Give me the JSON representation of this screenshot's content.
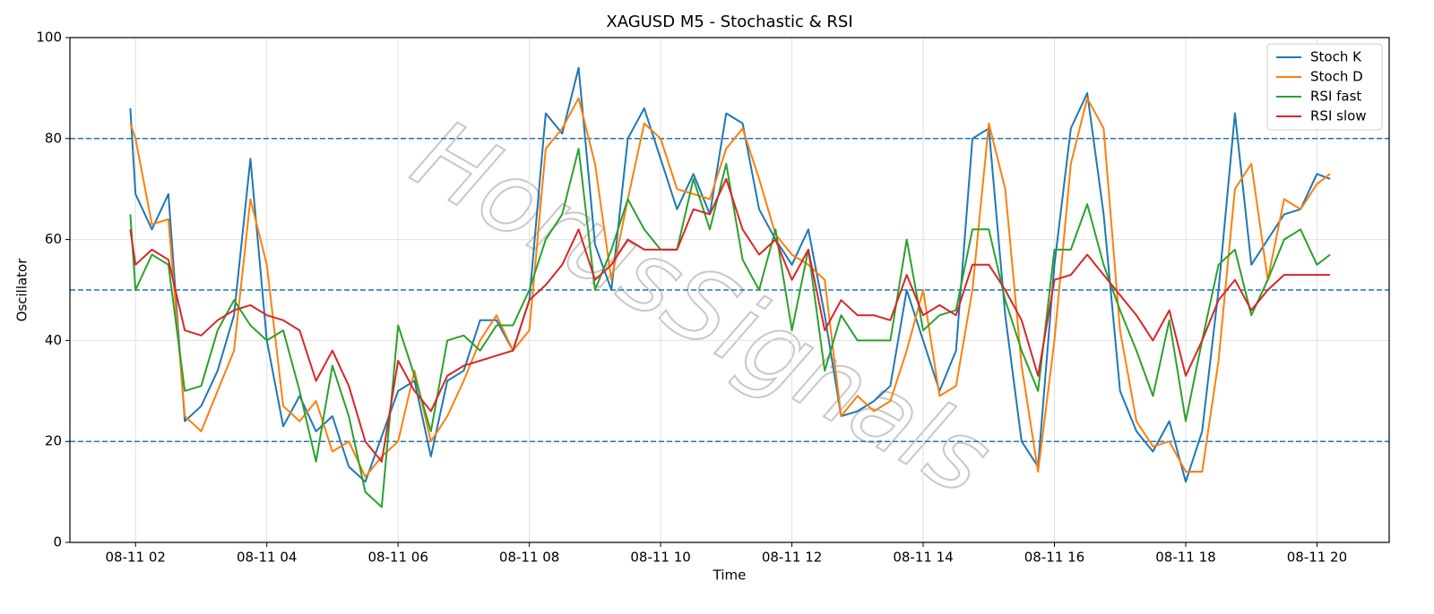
{
  "chart_data": {
    "type": "line",
    "title": "XAGUSD M5 - Stochastic & RSI",
    "xlabel": "Time",
    "ylabel": "Oscillator",
    "watermark": "HorusSignals",
    "x": [
      1.92,
      2,
      2.25,
      2.5,
      2.75,
      3,
      3.25,
      3.5,
      3.75,
      4,
      4.25,
      4.5,
      4.75,
      5,
      5.25,
      5.5,
      5.75,
      6,
      6.25,
      6.5,
      6.75,
      7,
      7.25,
      7.5,
      7.75,
      8,
      8.25,
      8.5,
      8.75,
      9,
      9.25,
      9.5,
      9.75,
      10,
      10.25,
      10.5,
      10.75,
      11,
      11.25,
      11.5,
      11.75,
      12,
      12.25,
      12.5,
      12.75,
      13,
      13.25,
      13.5,
      13.75,
      14,
      14.25,
      14.5,
      14.75,
      15,
      15.25,
      15.5,
      15.75,
      16,
      16.25,
      16.5,
      16.75,
      17,
      17.25,
      17.5,
      17.75,
      18,
      18.25,
      18.5,
      18.75,
      19,
      19.25,
      19.5,
      19.75,
      20,
      20.2
    ],
    "series": [
      {
        "name": "Stoch K",
        "color": "#1f77b4",
        "values": [
          86,
          69,
          62,
          69,
          24,
          27,
          34,
          45,
          76,
          40,
          23,
          29,
          22,
          25,
          15,
          12,
          21,
          30,
          32,
          17,
          32,
          34,
          44,
          44,
          38,
          48,
          85,
          81,
          94,
          59,
          50,
          80,
          86,
          76,
          66,
          73,
          65,
          85,
          83,
          66,
          60,
          55,
          62,
          45,
          25,
          26,
          28,
          31,
          50,
          40,
          30,
          38,
          80,
          82,
          45,
          20,
          15,
          55,
          82,
          89,
          65,
          30,
          22,
          18,
          24,
          12,
          22,
          50,
          85,
          55,
          60,
          65,
          66,
          73,
          72
        ]
      },
      {
        "name": "Stoch D",
        "color": "#ff7f0e",
        "values": [
          83,
          80,
          63,
          64,
          25,
          22,
          30,
          38,
          68,
          55,
          27,
          24,
          28,
          18,
          20,
          13,
          17,
          20,
          34,
          20,
          25,
          32,
          40,
          45,
          38,
          42,
          78,
          82,
          88,
          75,
          52,
          68,
          83,
          80,
          70,
          69,
          68,
          78,
          82,
          72,
          61,
          57,
          55,
          52,
          25,
          29,
          26,
          28,
          38,
          50,
          29,
          31,
          50,
          83,
          70,
          35,
          14,
          40,
          75,
          88,
          82,
          42,
          24,
          19,
          20,
          14,
          14,
          36,
          70,
          75,
          52,
          68,
          66,
          71,
          73
        ]
      },
      {
        "name": "RSI fast",
        "color": "#2ca02c",
        "values": [
          65,
          50,
          57,
          55,
          30,
          31,
          42,
          48,
          43,
          40,
          42,
          30,
          16,
          35,
          25,
          10,
          7,
          43,
          33,
          22,
          40,
          41,
          38,
          43,
          43,
          50,
          60,
          65,
          78,
          50,
          58,
          68,
          62,
          58,
          58,
          72,
          62,
          75,
          56,
          50,
          62,
          42,
          58,
          34,
          45,
          40,
          40,
          40,
          60,
          42,
          45,
          46,
          62,
          62,
          48,
          38,
          30,
          58,
          58,
          67,
          55,
          46,
          38,
          29,
          44,
          24,
          40,
          55,
          58,
          45,
          52,
          60,
          62,
          55,
          57
        ]
      },
      {
        "name": "RSI slow",
        "color": "#d62728",
        "values": [
          62,
          55,
          58,
          56,
          42,
          41,
          44,
          46,
          47,
          45,
          44,
          42,
          32,
          38,
          31,
          20,
          16,
          36,
          30,
          26,
          33,
          35,
          36,
          37,
          38,
          48,
          51,
          55,
          62,
          52,
          55,
          60,
          58,
          58,
          58,
          66,
          65,
          72,
          62,
          57,
          60,
          52,
          58,
          42,
          48,
          45,
          45,
          44,
          53,
          45,
          47,
          45,
          55,
          55,
          50,
          44,
          33,
          52,
          53,
          57,
          53,
          49,
          45,
          40,
          46,
          33,
          40,
          48,
          52,
          46,
          50,
          53,
          53,
          53,
          53
        ]
      }
    ],
    "hlines": [
      20,
      50,
      80
    ],
    "hline_color": "#1f77b4",
    "xlim": [
      1.0,
      21.1
    ],
    "xticks": [
      {
        "value": 2,
        "label": "08-11 02"
      },
      {
        "value": 4,
        "label": "08-11 04"
      },
      {
        "value": 6,
        "label": "08-11 06"
      },
      {
        "value": 8,
        "label": "08-11 08"
      },
      {
        "value": 10,
        "label": "08-11 10"
      },
      {
        "value": 12,
        "label": "08-11 12"
      },
      {
        "value": 14,
        "label": "08-11 14"
      },
      {
        "value": 16,
        "label": "08-11 16"
      },
      {
        "value": 18,
        "label": "08-11 18"
      },
      {
        "value": 20,
        "label": "08-11 20"
      }
    ],
    "ylim": [
      0,
      100
    ],
    "yticks": [
      0,
      20,
      40,
      60,
      80,
      100
    ],
    "grid": true,
    "legend": "upper right"
  }
}
